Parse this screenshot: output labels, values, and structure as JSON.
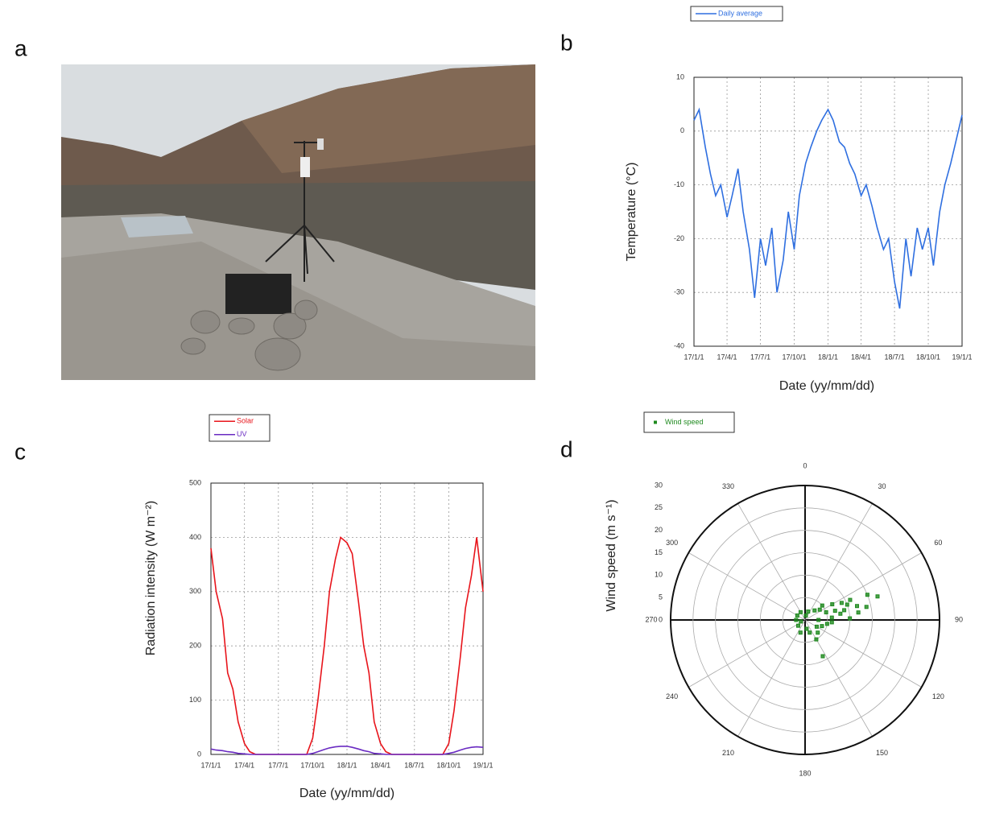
{
  "panel_labels": [
    "a",
    "b",
    "c",
    "d"
  ],
  "chart_data": [
    {
      "type": "line",
      "x_label": "Date (yy/mm/dd)",
      "y_label": "Temperature (°C)",
      "x": [
        "17/1/1",
        "17/1/15",
        "17/2/1",
        "17/2/15",
        "17/3/1",
        "17/3/15",
        "17/4/1",
        "17/4/15",
        "17/5/1",
        "17/5/15",
        "17/6/1",
        "17/6/15",
        "17/7/1",
        "17/7/15",
        "17/8/1",
        "17/8/15",
        "17/9/1",
        "17/9/15",
        "17/10/1",
        "17/10/15",
        "17/11/1",
        "17/11/15",
        "17/12/1",
        "17/12/15",
        "18/1/1",
        "18/1/15",
        "18/2/1",
        "18/2/15",
        "18/3/1",
        "18/3/15",
        "18/4/1",
        "18/4/15",
        "18/5/1",
        "18/5/15",
        "18/6/1",
        "18/6/15",
        "18/7/1",
        "18/7/15",
        "18/8/1",
        "18/8/15",
        "18/9/1",
        "18/9/15",
        "18/10/1",
        "18/10/15",
        "18/11/1",
        "18/11/15",
        "18/12/1",
        "18/12/15",
        "19/1/1"
      ],
      "series": [
        {
          "name": "Daily average",
          "color": "#2f6fe0",
          "values": [
            2,
            4,
            -3,
            -8,
            -12,
            -10,
            -16,
            -12,
            -7,
            -15,
            -22,
            -31,
            -20,
            -25,
            -18,
            -30,
            -24,
            -15,
            -22,
            -12,
            -6,
            -3,
            0,
            2,
            4,
            2,
            -2,
            -3,
            -6,
            -8,
            -12,
            -10,
            -14,
            -18,
            -22,
            -20,
            -28,
            -33,
            -20,
            -27,
            -18,
            -22,
            -18,
            -25,
            -15,
            -10,
            -6,
            -2,
            3
          ]
        }
      ],
      "xlim": [
        "17/1/1",
        "19/1/1"
      ],
      "xticks": [
        "17/1/1",
        "17/4/1",
        "17/7/1",
        "17/10/1",
        "18/1/1",
        "18/4/1",
        "18/7/1",
        "18/10/1",
        "19/1/1"
      ],
      "ylim": [
        -40,
        10
      ],
      "yticks": [
        -40,
        -30,
        -20,
        -10,
        0,
        10
      ],
      "grid": true
    },
    {
      "type": "line",
      "x_label": "Date (yy/mm/dd)",
      "y_label": "Radiation intensity (W m⁻²)",
      "x": [
        "17/1/1",
        "17/1/15",
        "17/2/1",
        "17/2/15",
        "17/3/1",
        "17/3/15",
        "17/4/1",
        "17/4/15",
        "17/5/1",
        "17/5/15",
        "17/6/1",
        "17/6/15",
        "17/7/1",
        "17/7/15",
        "17/8/1",
        "17/8/15",
        "17/9/1",
        "17/9/15",
        "17/10/1",
        "17/10/15",
        "17/11/1",
        "17/11/15",
        "17/12/1",
        "17/12/15",
        "18/1/1",
        "18/1/15",
        "18/2/1",
        "18/2/15",
        "18/3/1",
        "18/3/15",
        "18/4/1",
        "18/4/15",
        "18/5/1",
        "18/5/15",
        "18/6/1",
        "18/6/15",
        "18/7/1",
        "18/7/15",
        "18/8/1",
        "18/8/15",
        "18/9/1",
        "18/9/15",
        "18/10/1",
        "18/10/15",
        "18/11/1",
        "18/11/15",
        "18/12/1",
        "18/12/15",
        "19/1/1"
      ],
      "series": [
        {
          "name": "Solar",
          "color": "#e8141b",
          "values": [
            380,
            300,
            250,
            150,
            120,
            60,
            20,
            5,
            0,
            0,
            0,
            0,
            0,
            0,
            0,
            0,
            0,
            0,
            30,
            100,
            200,
            300,
            360,
            400,
            390,
            370,
            280,
            200,
            150,
            60,
            20,
            5,
            0,
            0,
            0,
            0,
            0,
            0,
            0,
            0,
            0,
            0,
            20,
            80,
            180,
            270,
            330,
            400,
            300
          ]
        },
        {
          "name": "UV",
          "color": "#6a2bc2",
          "values": [
            10,
            8,
            7,
            5,
            4,
            2,
            1,
            0,
            0,
            0,
            0,
            0,
            0,
            0,
            0,
            0,
            0,
            0,
            2,
            5,
            9,
            12,
            14,
            15,
            15,
            13,
            10,
            7,
            5,
            2,
            1,
            0,
            0,
            0,
            0,
            0,
            0,
            0,
            0,
            0,
            0,
            0,
            2,
            4,
            8,
            11,
            13,
            14,
            13
          ]
        }
      ],
      "xlim": [
        "17/1/1",
        "19/1/1"
      ],
      "xticks": [
        "17/1/1",
        "17/4/1",
        "17/7/1",
        "17/10/1",
        "18/1/1",
        "18/4/1",
        "18/7/1",
        "18/10/1",
        "19/1/1"
      ],
      "ylim": [
        0,
        500
      ],
      "yticks": [
        0,
        100,
        200,
        300,
        400,
        500
      ],
      "grid": true
    },
    {
      "type": "polar",
      "y_label": "Wind speed (m s⁻¹)",
      "series": [
        {
          "name": "Wind speed",
          "color": "#1f8a1f",
          "theta": [
            70,
            75,
            68,
            72,
            80,
            85,
            65,
            60,
            78,
            88,
            95,
            100,
            110,
            135,
            150,
            160,
            200,
            230,
            270,
            300,
            330,
            20,
            45,
            50,
            55,
            82,
            76,
            90,
            120,
            170,
            250,
            10,
            70,
            66,
            73,
            154
          ],
          "r": [
            10,
            12,
            15,
            17,
            8,
            6,
            9,
            7,
            14,
            10,
            6,
            5,
            4,
            4,
            5,
            3,
            3,
            2,
            2,
            2,
            2,
            2,
            3,
            5,
            4,
            12,
            9,
            3,
            3,
            2,
            1,
            1,
            5,
            11,
            7,
            9
          ]
        }
      ],
      "rlim": [
        0,
        30
      ],
      "rticks": [
        0,
        5,
        10,
        15,
        20,
        25,
        30
      ],
      "thetaticks": [
        0,
        30,
        60,
        90,
        120,
        150,
        180,
        210,
        240,
        270,
        300,
        330
      ],
      "grid": true
    }
  ]
}
